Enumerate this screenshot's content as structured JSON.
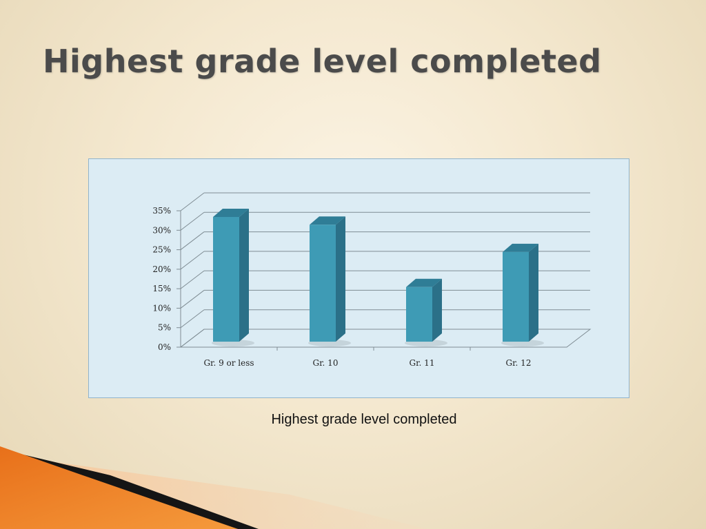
{
  "slide": {
    "title": "Highest grade level completed",
    "caption": "Highest grade level completed"
  },
  "colors": {
    "bar_front": "#3e9bb5",
    "bar_side": "#2b7088",
    "bar_top": "#2f7d96",
    "grid": "#7f8c93"
  },
  "chart_data": {
    "type": "bar",
    "categories": [
      "Gr. 9 or less",
      "Gr. 10",
      "Gr. 11",
      "Gr. 12"
    ],
    "values": [
      32,
      30,
      14,
      23
    ],
    "ylim": [
      0,
      35
    ],
    "yticks": [
      0,
      5,
      10,
      15,
      20,
      25,
      30,
      35
    ],
    "ytick_labels": [
      "0%",
      "5%",
      "10%",
      "15%",
      "20%",
      "25%",
      "30%",
      "35%"
    ],
    "ytick_suffix": "%",
    "grid": true,
    "three_d": true,
    "legend": "none"
  }
}
